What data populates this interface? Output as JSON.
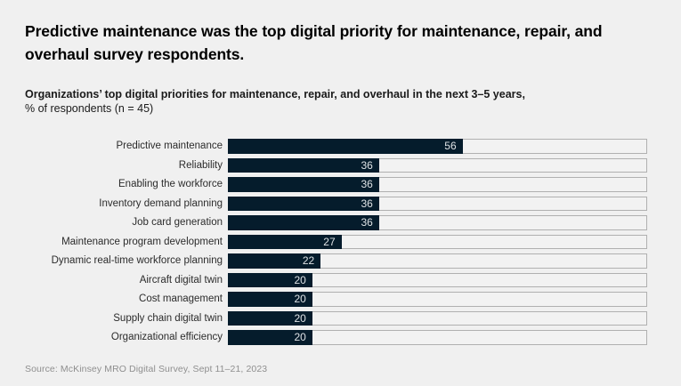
{
  "header": {
    "title": "Predictive maintenance was the top digital priority for maintenance, repair, and overhaul survey respondents.",
    "subtitle_bold": "Organizations’ top digital priorities for maintenance, repair, and overhaul in the next 3–5 years,",
    "subtitle_regular": "% of respondents (n = 45)"
  },
  "chart_data": {
    "type": "bar",
    "orientation": "horizontal",
    "title": "Organizations’ top digital priorities for maintenance, repair, and overhaul in the next 3–5 years, % of respondents (n = 45)",
    "categories": [
      "Predictive maintenance",
      "Reliability",
      "Enabling the workforce",
      "Inventory demand planning",
      "Job card generation",
      "Maintenance program development",
      "Dynamic real-time workforce planning",
      "Aircraft digital twin",
      "Cost management",
      "Supply chain digital twin",
      "Organizational efficiency"
    ],
    "values": [
      56,
      36,
      36,
      36,
      36,
      27,
      22,
      20,
      20,
      20,
      20
    ],
    "xlabel": "% of respondents",
    "ylabel": "",
    "xlim": [
      0,
      100
    ],
    "grid": false,
    "legend": false,
    "bar_color": "#051c2c",
    "track_color": "#f2f2f2",
    "track_border_color": "#b0b0b0",
    "value_label_color": "#dde1e4"
  },
  "footer": {
    "source": "Source: McKinsey MRO Digital Survey, Sept 11–21, 2023"
  },
  "colors": {
    "background": "#f0f0f0",
    "title_text": "#000000",
    "body_text": "#1a1a1a",
    "source_text": "#8f8f8f"
  }
}
